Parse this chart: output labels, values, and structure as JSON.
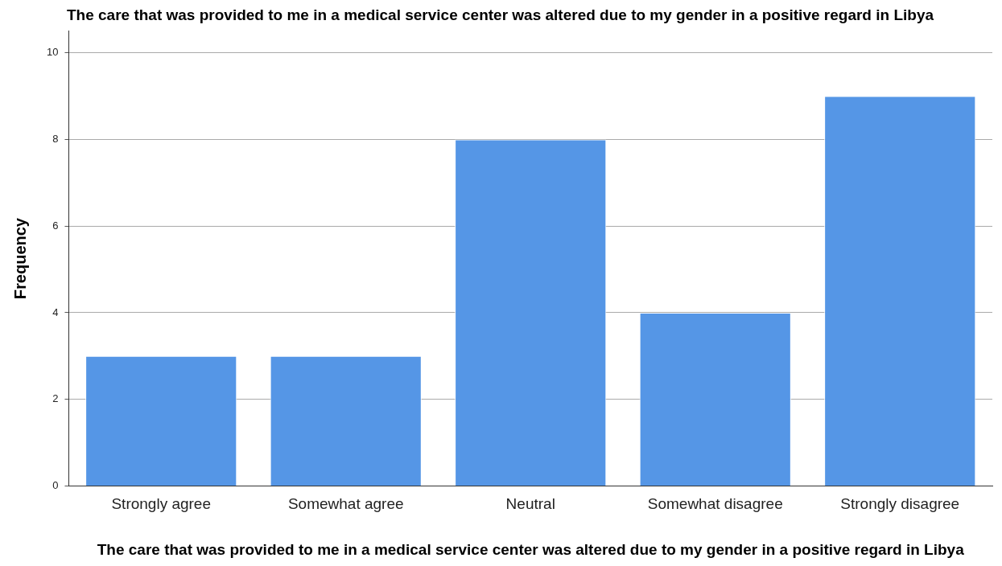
{
  "chart_data": {
    "type": "bar",
    "title": "The care that was provided to me in a medical service center was altered due to my gender in a positive regard in Libya",
    "xlabel": "The care that was provided to me in a medical service center was altered due to my gender in a positive regard in Libya",
    "ylabel": "Frequency",
    "categories": [
      "Strongly agree",
      "Somewhat agree",
      "Neutral",
      "Somewhat disagree",
      "Strongly disagree"
    ],
    "values": [
      3,
      3,
      8,
      4,
      9
    ],
    "color": "#5596e6",
    "ylim": [
      0,
      10.5
    ],
    "yticks": [
      0,
      2,
      4,
      6,
      8,
      10
    ],
    "grid": "y",
    "legend": false
  }
}
